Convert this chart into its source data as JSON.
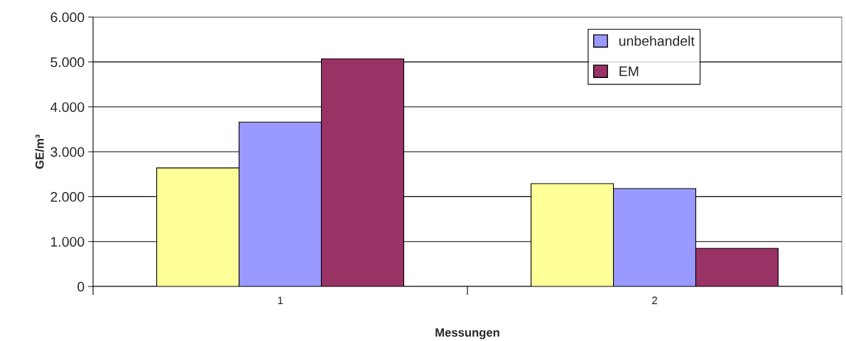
{
  "chart_data": {
    "type": "bar",
    "xlabel": "Messungen",
    "ylabel": "GE/m³",
    "categories": [
      "1",
      "2"
    ],
    "series": [
      {
        "color": "#ffff99",
        "values": [
          2640,
          2290
        ]
      },
      {
        "name": "unbehandelt",
        "color": "#9999ff",
        "values": [
          3660,
          2180
        ]
      },
      {
        "name": "EM",
        "color": "#993366",
        "values": [
          5070,
          850
        ]
      }
    ],
    "ylim": [
      0,
      6000
    ],
    "yticks": [
      0,
      {
        "value": 1000,
        "label": "1.000"
      },
      {
        "value": 2000,
        "label": "2.000"
      },
      {
        "value": 3000,
        "label": "3.000"
      },
      {
        "value": 4000,
        "label": "4.000"
      },
      {
        "value": 5000,
        "label": "5.000"
      },
      {
        "value": 6000,
        "label": "6.000"
      }
    ],
    "grid": "y",
    "legend": "top right"
  }
}
